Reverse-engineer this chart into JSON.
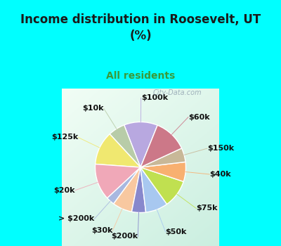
{
  "title": "Income distribution in Roosevelt, UT\n(%)",
  "subtitle": "All residents",
  "bg_cyan": "#00FFFF",
  "bg_chart": "#d4ede8",
  "title_color": "#1a1a1a",
  "subtitle_color": "#3a9a3a",
  "labels": [
    "$100k",
    "$10k",
    "$125k",
    "$20k",
    "> $200k",
    "$30k",
    "$200k",
    "$50k",
    "$75k",
    "$40k",
    "$150k",
    "$60k"
  ],
  "sizes": [
    12,
    6,
    12,
    13,
    3,
    7,
    5,
    8,
    10,
    7,
    5,
    12
  ],
  "colors": [
    "#b8a8e0",
    "#b8cca8",
    "#f0e870",
    "#f0a8b8",
    "#a8b8e0",
    "#f8c8a0",
    "#8888cc",
    "#a8c8f0",
    "#c0e050",
    "#f8b070",
    "#c8b898",
    "#cc7888"
  ],
  "wedge_linewidth": 1.0,
  "wedge_edgecolor": "#ffffff",
  "label_fontsize": 8,
  "label_color": "#111111",
  "startangle": 68,
  "watermark": "City-Data.com"
}
